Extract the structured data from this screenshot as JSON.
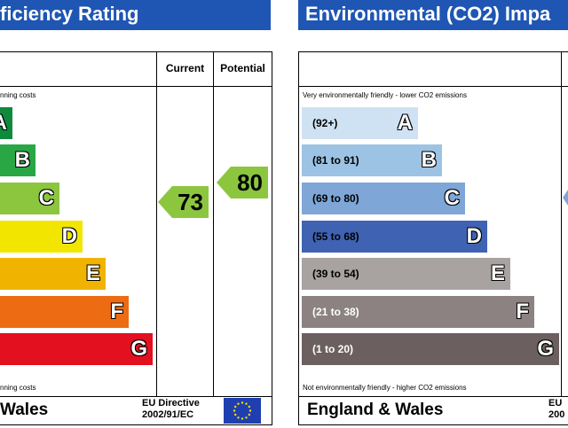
{
  "left_panel": {
    "title": "ficiency Rating",
    "col_current": "Current",
    "col_potential": "Potential",
    "top_note": "nning costs",
    "bottom_note": "nning costs",
    "footer_title": "Wales",
    "directive_line1": "EU Directive",
    "directive_line2": "2002/91/EC",
    "bands": [
      {
        "letter": "A",
        "color": "#0f8a3c"
      },
      {
        "letter": "B",
        "color": "#2aa745"
      },
      {
        "letter": "C",
        "color": "#8cc63f"
      },
      {
        "letter": "D",
        "color": "#f2e500"
      },
      {
        "letter": "E",
        "color": "#f0b400"
      },
      {
        "letter": "F",
        "color": "#ec6b13"
      },
      {
        "letter": "G",
        "color": "#e3101f"
      }
    ],
    "current": {
      "value": "73",
      "color": "#8cc63f"
    },
    "potential": {
      "value": "80",
      "color": "#8cc63f"
    }
  },
  "right_panel": {
    "title": "Environmental (CO2) Impa",
    "top_note": "Very environmentally friendly - lower CO2 emissions",
    "bottom_note": "Not environmentally friendly - higher CO2 emissions",
    "footer_title": "England & Wales",
    "directive_line1": "EU",
    "directive_line2": "200",
    "bands": [
      {
        "range": "(92+)",
        "letter": "A",
        "color": "#cfe2f3",
        "text_color": "#000000"
      },
      {
        "range": "(81 to 91)",
        "letter": "B",
        "color": "#9cc3e3",
        "text_color": "#000000"
      },
      {
        "range": "(69 to 80)",
        "letter": "C",
        "color": "#7ea6d6",
        "text_color": "#000000"
      },
      {
        "range": "(55 to 68)",
        "letter": "D",
        "color": "#3f63b2",
        "text_color": "#000000"
      },
      {
        "range": "(39 to 54)",
        "letter": "E",
        "color": "#a8a2a0",
        "text_color": "#000000"
      },
      {
        "range": "(21 to 38)",
        "letter": "F",
        "color": "#8b8281",
        "text_color": "#ffffff"
      },
      {
        "range": "(1 to 20)",
        "letter": "G",
        "color": "#6b605f",
        "text_color": "#ffffff"
      }
    ]
  }
}
